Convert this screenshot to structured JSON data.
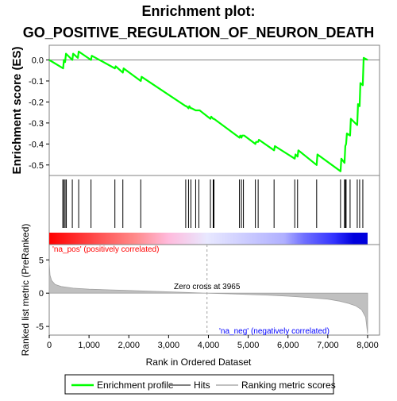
{
  "chart_data": {
    "type": "line",
    "title_line1": "Enrichment plot:",
    "title_line2": "GO_POSITIVE_REGULATION_OF_NEURON_DEATH",
    "top_panel": {
      "ylabel": "Enrichment score (ES)",
      "ylim": [
        -0.55,
        0.07
      ],
      "yticks": [
        "0.0",
        "-0.1",
        "-0.2",
        "-0.3",
        "-0.4",
        "-0.5"
      ],
      "ytick_values": [
        0.0,
        -0.1,
        -0.2,
        -0.3,
        -0.4,
        -0.5
      ],
      "series": [
        {
          "name": "Enrichment profile",
          "color": "#00ff00",
          "x": [
            0,
            350,
            370,
            400,
            420,
            580,
            600,
            720,
            740,
            1050,
            1070,
            1650,
            1670,
            1850,
            1870,
            2300,
            2320,
            3430,
            3450,
            3500,
            3520,
            3560,
            3580,
            3680,
            3700,
            3760,
            3780,
            4050,
            4070,
            4120,
            4140,
            4780,
            4800,
            4830,
            4850,
            4880,
            4900,
            5180,
            5200,
            5250,
            5270,
            5650,
            5670,
            6170,
            6190,
            6240,
            6260,
            6720,
            6740,
            7320,
            7340,
            7420,
            7440,
            7460,
            7480,
            7560,
            7580,
            7740,
            7760,
            7800,
            7820,
            7880,
            7900,
            8000
          ],
          "y": [
            0.0,
            -0.04,
            0.0,
            -0.01,
            0.03,
            0.0,
            0.03,
            0.01,
            0.04,
            0.0,
            0.02,
            -0.04,
            -0.03,
            -0.06,
            -0.04,
            -0.1,
            -0.08,
            -0.22,
            -0.22,
            -0.23,
            -0.22,
            -0.23,
            -0.23,
            -0.24,
            -0.24,
            -0.24,
            -0.24,
            -0.28,
            -0.27,
            -0.28,
            -0.28,
            -0.37,
            -0.36,
            -0.37,
            -0.36,
            -0.36,
            -0.36,
            -0.4,
            -0.39,
            -0.39,
            -0.38,
            -0.43,
            -0.41,
            -0.47,
            -0.45,
            -0.46,
            -0.43,
            -0.5,
            -0.45,
            -0.53,
            -0.47,
            -0.49,
            -0.41,
            -0.4,
            -0.35,
            -0.36,
            -0.28,
            -0.31,
            -0.21,
            -0.22,
            -0.11,
            -0.12,
            0.01,
            0.0
          ]
        }
      ]
    },
    "hits": {
      "name": "Hits",
      "x": [
        340,
        370,
        400,
        430,
        580,
        740,
        1050,
        1650,
        1850,
        2300,
        3430,
        3500,
        3560,
        3680,
        3760,
        4050,
        4120,
        4140,
        4780,
        4830,
        4880,
        5180,
        5250,
        5650,
        6170,
        6240,
        6720,
        7320,
        7420,
        7440,
        7460,
        7560,
        7740,
        7800,
        7880
      ]
    },
    "ranking_bar": {
      "stops": [
        {
          "x": 0,
          "color": "#ff0000"
        },
        {
          "x": 1300,
          "color": "#ff5555"
        },
        {
          "x": 2150,
          "color": "#ff8a8a"
        },
        {
          "x": 3000,
          "color": "#ffbbdd"
        },
        {
          "x": 3965,
          "color": "#e8e8ff"
        },
        {
          "x": 5900,
          "color": "#b0b0ff"
        },
        {
          "x": 6400,
          "color": "#7070ff"
        },
        {
          "x": 7150,
          "color": "#3333ff"
        },
        {
          "x": 7650,
          "color": "#0000dd"
        },
        {
          "x": 8000,
          "color": "#0000dd"
        }
      ],
      "pos_label": "'na_pos' (positively correlated)",
      "neg_label": "'na_neg' (negatively correlated)"
    },
    "bottom_panel": {
      "ylabel": "Ranked list metric (PreRanked)",
      "ylim": [
        -6.3,
        7.3
      ],
      "yticks": [
        "5",
        "0",
        "-5"
      ],
      "ytick_values": [
        5,
        0,
        -5
      ],
      "series": [
        {
          "name": "Ranking metric scores",
          "color": "#c0c0c0",
          "x": [
            0,
            20,
            60,
            150,
            300,
            600,
            1000,
            1500,
            2000,
            2500,
            3000,
            3500,
            3965,
            4500,
            5000,
            5500,
            6000,
            6500,
            7000,
            7300,
            7500,
            7700,
            7850,
            7950,
            8000
          ],
          "y": [
            4.6,
            2.7,
            1.9,
            1.3,
            1.0,
            0.75,
            0.6,
            0.5,
            0.4,
            0.3,
            0.2,
            0.1,
            0.0,
            -0.1,
            -0.2,
            -0.3,
            -0.45,
            -0.65,
            -0.9,
            -1.2,
            -1.5,
            -1.9,
            -2.5,
            -3.6,
            -6.1
          ]
        }
      ],
      "zero_cross_label": "Zero cross at 3965",
      "zero_cross_x": 3965
    },
    "x_axis": {
      "xlabel": "Rank in Ordered Dataset",
      "xlim": [
        0,
        8300
      ],
      "xticks": [
        "0",
        "1,000",
        "2,000",
        "3,000",
        "4,000",
        "5,000",
        "6,000",
        "7,000",
        "8,000"
      ],
      "xtick_values": [
        0,
        1000,
        2000,
        3000,
        4000,
        5000,
        6000,
        7000,
        8000
      ]
    },
    "legend": {
      "placement": "bottom",
      "entries": [
        {
          "label": "Enrichment profile",
          "color": "#00ff00"
        },
        {
          "label": "Hits",
          "color": "#808080"
        },
        {
          "label": "Ranking metric scores",
          "color": "#c0c0c0"
        }
      ]
    }
  }
}
